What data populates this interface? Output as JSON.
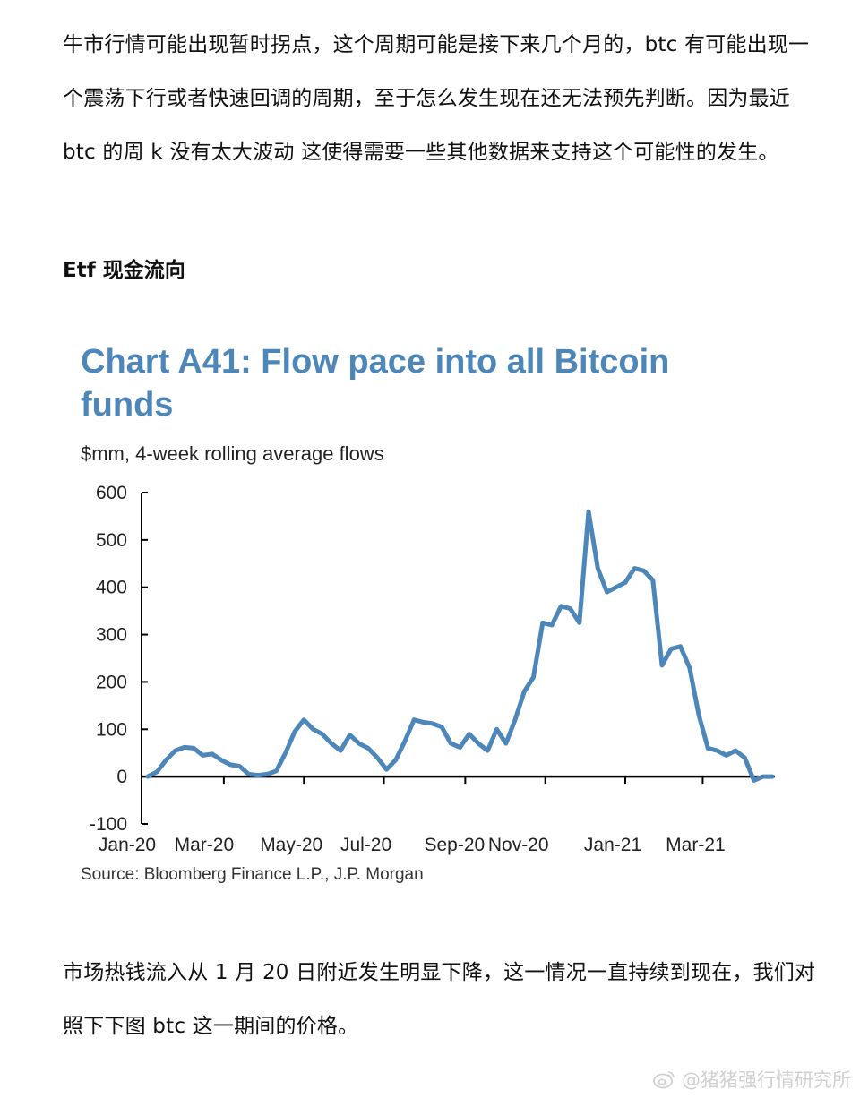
{
  "intro": {
    "text": "牛市行情可能出现暂时拐点，这个周期可能是接下来几个月的，btc 有可能出现一个震荡下行或者快速回调的周期，至于怎么发生现在还无法预先判断。因为最近 btc 的周 k 没有太大波动 这使得需要一些其他数据来支持这个可能性的发生。"
  },
  "section": {
    "heading": "Etf 现金流向"
  },
  "chart": {
    "title": "Chart A41: Flow pace into all Bitcoin funds",
    "subtitle": "$mm, 4-week rolling average flows",
    "source": "Source: Bloomberg Finance L.P., J.P. Morgan"
  },
  "chart_data": {
    "type": "line",
    "title": "Chart A41: Flow pace into all Bitcoin funds",
    "subtitle": "$mm, 4-week rolling average flows",
    "xlabel": "",
    "ylabel": "",
    "ylim": [
      -100,
      600
    ],
    "yticks": [
      "600",
      "500",
      "400",
      "300",
      "200",
      "100",
      "0",
      "-100"
    ],
    "xticks": [
      "Jan-20",
      "Mar-20",
      "May-20",
      "Jul-20",
      "Sep-20",
      "Nov-20",
      "Jan-21",
      "Mar-21"
    ],
    "grid": false,
    "color": "#4d86b9",
    "series": [
      {
        "name": "",
        "x": [
          "2020-01-03",
          "2020-01-10",
          "2020-01-17",
          "2020-01-24",
          "2020-01-31",
          "2020-02-07",
          "2020-02-14",
          "2020-02-21",
          "2020-02-28",
          "2020-03-06",
          "2020-03-13",
          "2020-03-20",
          "2020-03-27",
          "2020-04-03",
          "2020-04-10",
          "2020-04-17",
          "2020-04-24",
          "2020-05-01",
          "2020-05-08",
          "2020-05-15",
          "2020-05-22",
          "2020-05-29",
          "2020-06-05",
          "2020-06-12",
          "2020-06-19",
          "2020-06-26",
          "2020-07-03",
          "2020-07-10",
          "2020-07-17",
          "2020-07-24",
          "2020-07-31",
          "2020-08-07",
          "2020-08-14",
          "2020-08-21",
          "2020-08-28",
          "2020-09-04",
          "2020-09-11",
          "2020-09-18",
          "2020-09-25",
          "2020-10-02",
          "2020-10-09",
          "2020-10-16",
          "2020-10-23",
          "2020-10-30",
          "2020-11-06",
          "2020-11-13",
          "2020-11-20",
          "2020-11-27",
          "2020-12-04",
          "2020-12-11",
          "2020-12-18",
          "2020-12-25",
          "2021-01-01",
          "2021-01-08",
          "2021-01-15",
          "2021-01-22",
          "2021-01-29",
          "2021-02-05",
          "2021-02-12",
          "2021-02-19",
          "2021-02-26",
          "2021-03-05",
          "2021-03-12",
          "2021-03-19",
          "2021-03-26",
          "2021-04-02",
          "2021-04-09",
          "2021-04-16",
          "2021-04-23"
        ],
        "values": [
          0,
          10,
          35,
          55,
          62,
          60,
          45,
          48,
          35,
          25,
          22,
          5,
          3,
          5,
          12,
          50,
          95,
          120,
          100,
          90,
          70,
          55,
          88,
          70,
          60,
          40,
          15,
          35,
          75,
          120,
          115,
          112,
          105,
          70,
          62,
          90,
          70,
          55,
          100,
          70,
          120,
          180,
          210,
          325,
          320,
          360,
          355,
          325,
          560,
          440,
          390,
          400,
          410,
          440,
          435,
          415,
          235,
          270,
          275,
          230,
          130,
          60,
          55,
          45,
          55,
          40,
          -8,
          0,
          0
        ],
        "note": ""
      }
    ]
  },
  "outro": {
    "text": "市场热钱流入从 1 月 20 日附近发生明显下降，这一情况一直持续到现在，我们对照下下图 btc 这一期间的价格。"
  },
  "watermark": {
    "text": "@猪猪强行情研究所",
    "icon": "weibo-icon"
  }
}
